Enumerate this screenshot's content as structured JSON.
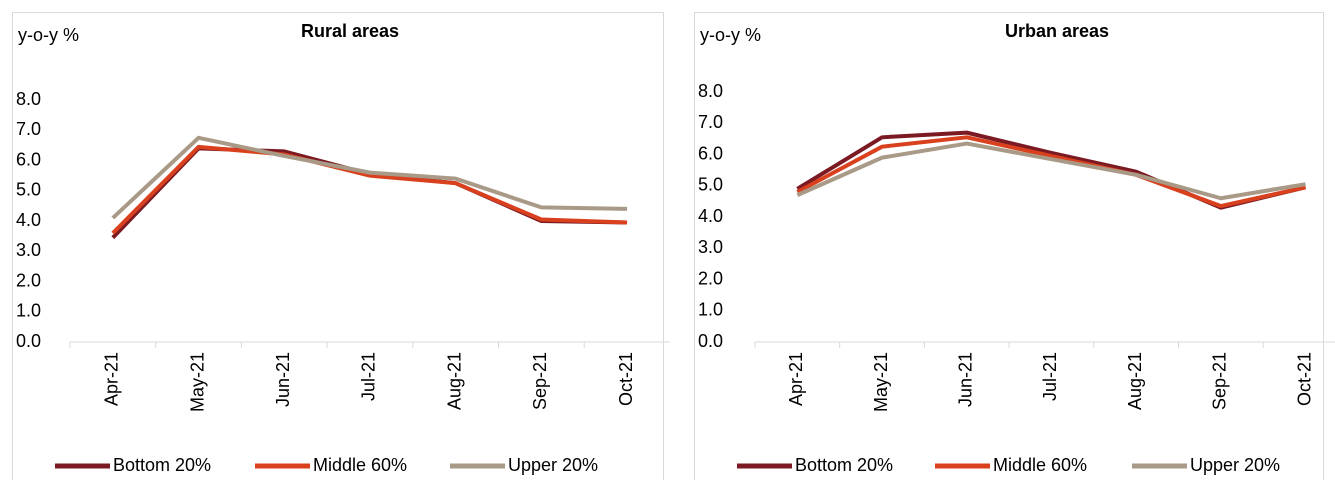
{
  "chart_data": [
    {
      "type": "line",
      "title": "Rural areas",
      "y_label": "y-o-y %",
      "categories": [
        "Apr-21",
        "May-21",
        "Jun-21",
        "Jul-21",
        "Aug-21",
        "Sep-21",
        "Oct-21"
      ],
      "series": [
        {
          "name": "Bottom 20%",
          "color": "#7b1a22",
          "values": [
            3.45,
            6.4,
            6.3,
            5.55,
            5.25,
            4.0,
            3.95
          ]
        },
        {
          "name": "Middle 60%",
          "color": "#d9411e",
          "values": [
            3.6,
            6.45,
            6.2,
            5.5,
            5.25,
            4.05,
            3.95
          ]
        },
        {
          "name": "Upper 20%",
          "color": "#a89a86",
          "values": [
            4.1,
            6.75,
            6.15,
            5.6,
            5.4,
            4.45,
            4.4
          ]
        }
      ],
      "ylim": [
        0,
        8
      ],
      "yticks": [
        {
          "value": 0,
          "label": "0.0"
        },
        {
          "value": 1,
          "label": "1.0"
        },
        {
          "value": 2,
          "label": "2.0"
        },
        {
          "value": 3,
          "label": "3.0"
        },
        {
          "value": 4,
          "label": "4.0"
        },
        {
          "value": 5,
          "label": "5.0"
        },
        {
          "value": 6,
          "label": "6.0"
        },
        {
          "value": 7,
          "label": "7.0"
        },
        {
          "value": 8,
          "label": "8.0"
        }
      ],
      "legend": "bottom",
      "grid": false
    },
    {
      "type": "line",
      "title": "Urban areas",
      "y_label": "y-o-y %",
      "categories": [
        "Apr-21",
        "May-21",
        "Jun-21",
        "Jul-21",
        "Aug-21",
        "Sep-21",
        "Oct-21"
      ],
      "series": [
        {
          "name": "Bottom 20%",
          "color": "#7b1a22",
          "values": [
            4.9,
            6.55,
            6.7,
            6.05,
            5.45,
            4.3,
            4.95
          ]
        },
        {
          "name": "Middle 60%",
          "color": "#d9411e",
          "values": [
            4.8,
            6.25,
            6.55,
            5.95,
            5.35,
            4.35,
            4.95
          ]
        },
        {
          "name": "Upper 20%",
          "color": "#a89a86",
          "values": [
            4.7,
            5.9,
            6.35,
            5.85,
            5.35,
            4.6,
            5.05
          ]
        }
      ],
      "ylim": [
        0,
        8
      ],
      "yticks": [
        {
          "value": 0,
          "label": "0.0"
        },
        {
          "value": 1,
          "label": "1.0"
        },
        {
          "value": 2,
          "label": "2.0"
        },
        {
          "value": 3,
          "label": "3.0"
        },
        {
          "value": 4,
          "label": "4.0"
        },
        {
          "value": 5,
          "label": "5.0"
        },
        {
          "value": 6,
          "label": "6.0"
        },
        {
          "value": 7,
          "label": "7.0"
        },
        {
          "value": 8,
          "label": "8.0"
        }
      ],
      "legend": "bottom",
      "grid": false
    }
  ]
}
